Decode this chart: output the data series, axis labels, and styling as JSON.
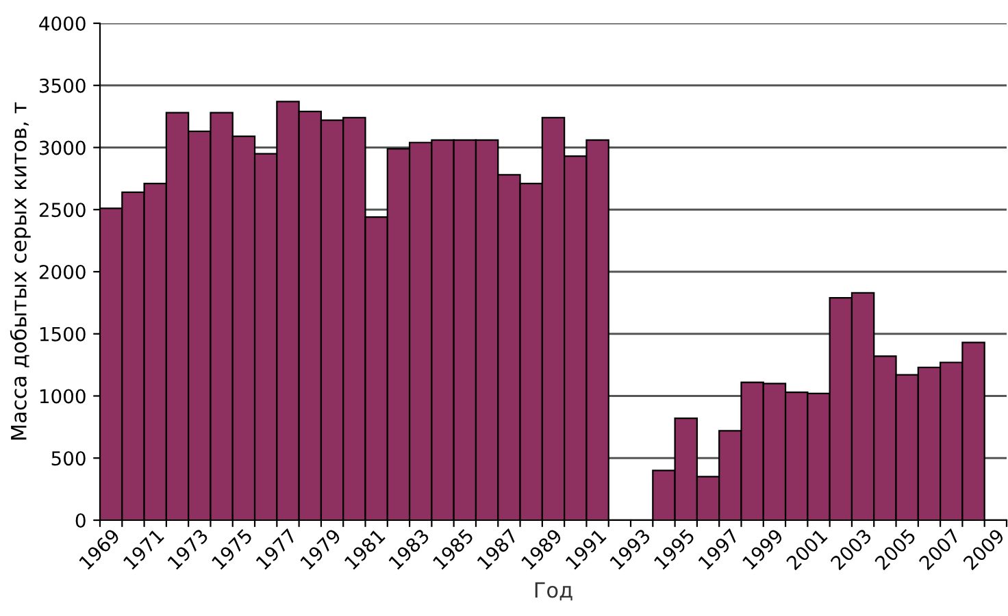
{
  "chart_data": {
    "type": "bar",
    "xlabel": "Год",
    "ylabel": "Масса добытых серых китов, т",
    "categories": [
      "1969",
      null,
      "1971",
      null,
      "1973",
      null,
      "1975",
      null,
      "1977",
      null,
      "1979",
      null,
      "1981",
      null,
      "1983",
      null,
      "1985",
      null,
      "1987",
      null,
      "1989",
      null,
      "1991",
      null,
      "1993",
      null,
      "1995",
      null,
      "1997",
      null,
      "1999",
      null,
      "2001",
      null,
      "2003",
      null,
      "2005",
      null,
      "2007",
      null,
      "2009"
    ],
    "values": [
      2510,
      2640,
      2710,
      3280,
      3130,
      3280,
      3090,
      2950,
      3370,
      3290,
      3220,
      3240,
      2440,
      2990,
      3040,
      3060,
      3060,
      3060,
      2780,
      2710,
      3240,
      2930,
      3060,
      null,
      null,
      400,
      820,
      350,
      720,
      1110,
      1100,
      1030,
      1020,
      1790,
      1830,
      1320,
      1170,
      1230,
      1270,
      1430,
      null
    ],
    "color": "#8e3060",
    "ylim": [
      0,
      4000
    ],
    "yticks": [
      0,
      500,
      1000,
      1500,
      2000,
      2500,
      3000,
      3500,
      4000
    ],
    "grid": "y"
  }
}
